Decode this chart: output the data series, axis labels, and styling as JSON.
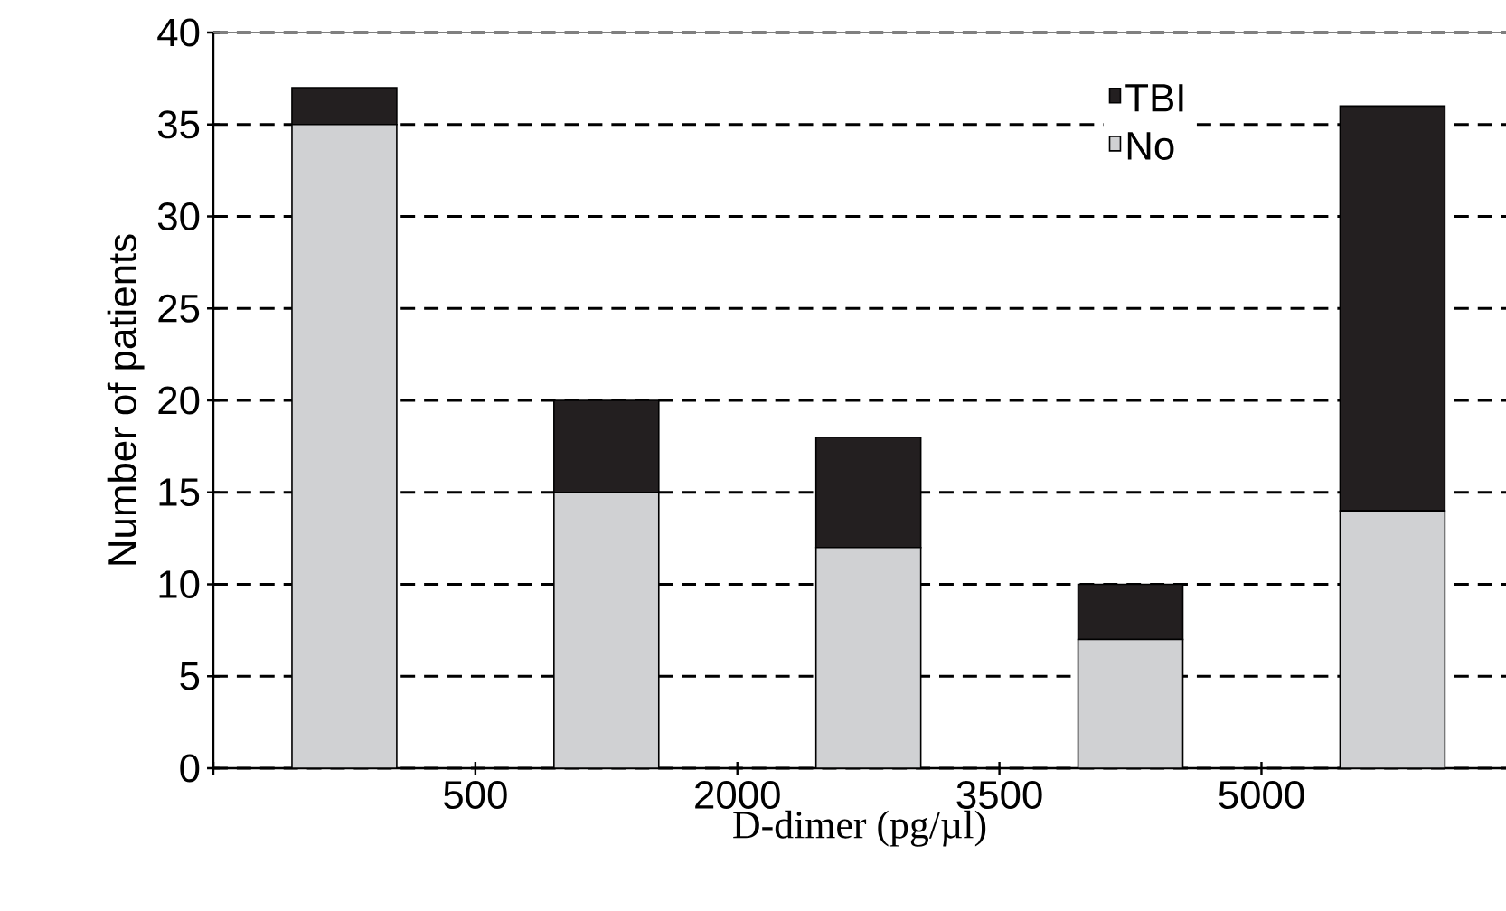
{
  "chart_data": {
    "type": "bar",
    "stacked": true,
    "x": [
      -250,
      1250,
      2750,
      4250,
      5750
    ],
    "xlabel": "D-dimer (pg/µl)",
    "ylabel": "Number of patients",
    "xlim": [
      -1000,
      6400
    ],
    "xticks": [
      {
        "value": -1000,
        "label": null
      },
      500,
      2000,
      3500,
      5000
    ],
    "ylim": [
      0,
      40
    ],
    "yticks": [
      0,
      5,
      10,
      15,
      20,
      25,
      30,
      35,
      40
    ],
    "grid": "y",
    "legend": "top right",
    "series": [
      {
        "name": "No",
        "color": "#d0d1d3",
        "values": [
          35,
          15,
          12,
          7,
          14
        ]
      },
      {
        "name": "TBI",
        "color": "#231f20",
        "values": [
          2,
          5,
          6,
          3,
          22
        ]
      }
    ]
  }
}
